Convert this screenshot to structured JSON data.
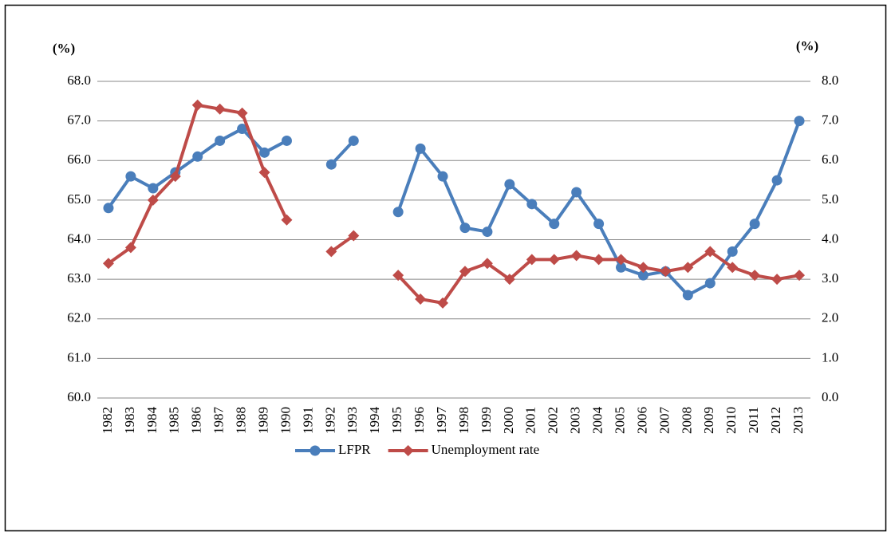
{
  "chart_data": {
    "type": "line",
    "y_label": "(%)",
    "y2_label": "(%)",
    "categories": [
      "1982",
      "1983",
      "1984",
      "1985",
      "1986",
      "1987",
      "1988",
      "1989",
      "1990",
      "1991",
      "1992",
      "1993",
      "1994",
      "1995",
      "1996",
      "1997",
      "1998",
      "1999",
      "2000",
      "2001",
      "2002",
      "2003",
      "2004",
      "2005",
      "2006",
      "2007",
      "2008",
      "2009",
      "2010",
      "2011",
      "2012",
      "2013"
    ],
    "series": [
      {
        "name": "LFPR",
        "color": "#4a7ebb",
        "marker": "circle",
        "values": [
          64.8,
          65.6,
          65.3,
          65.7,
          66.1,
          66.5,
          66.8,
          66.2,
          66.5,
          null,
          65.9,
          66.5,
          null,
          64.7,
          66.3,
          65.6,
          64.3,
          64.2,
          65.4,
          64.9,
          64.4,
          65.2,
          64.4,
          63.3,
          63.1,
          63.2,
          62.6,
          62.9,
          63.7,
          64.4,
          65.5,
          67.0
        ]
      },
      {
        "name": "Unemployment rate",
        "color": "#be4b48",
        "marker": "diamond",
        "axis": "y2",
        "values": [
          3.4,
          3.8,
          5.0,
          5.6,
          7.4,
          7.3,
          7.2,
          5.7,
          4.5,
          null,
          3.7,
          4.1,
          null,
          3.1,
          2.5,
          2.4,
          3.2,
          3.4,
          3.0,
          3.5,
          3.5,
          3.6,
          3.5,
          3.5,
          3.3,
          3.2,
          3.3,
          3.7,
          3.3,
          3.1,
          3.0,
          3.1
        ]
      }
    ],
    "ylim": [
      60,
      68
    ],
    "yticks": [
      {
        "value": 60,
        "label": "60.0"
      },
      {
        "value": 61,
        "label": "61.0"
      },
      {
        "value": 62,
        "label": "62.0"
      },
      {
        "value": 63,
        "label": "63.0"
      },
      {
        "value": 64,
        "label": "64.0"
      },
      {
        "value": 65,
        "label": "65.0"
      },
      {
        "value": 66,
        "label": "66.0"
      },
      {
        "value": 67,
        "label": "67.0"
      },
      {
        "value": 68,
        "label": "68.0"
      }
    ],
    "y2lim": [
      0,
      8
    ],
    "y2ticks": [
      {
        "value": 0,
        "label": "0.0"
      },
      {
        "value": 1,
        "label": "1.0"
      },
      {
        "value": 2,
        "label": "2.0"
      },
      {
        "value": 3,
        "label": "3.0"
      },
      {
        "value": 4,
        "label": "4.0"
      },
      {
        "value": 5,
        "label": "5.0"
      },
      {
        "value": 6,
        "label": "6.0"
      },
      {
        "value": 7,
        "label": "7.0"
      },
      {
        "value": 8,
        "label": "8.0"
      }
    ],
    "grid": true,
    "legend": "bottom"
  }
}
